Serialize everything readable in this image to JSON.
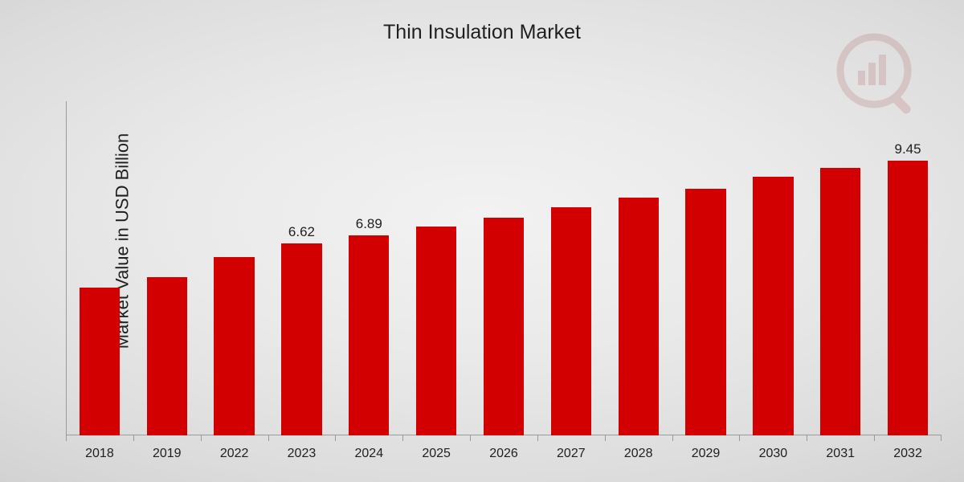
{
  "chart": {
    "type": "bar",
    "title": "Thin Insulation Market",
    "title_fontsize": 25,
    "title_color": "#1f1f1f",
    "ylabel": "Market Value in USD Billion",
    "ylabel_fontsize": 22,
    "ylabel_color": "#1f1f1f",
    "background": "radial-gradient #f2f2f2 to #cfcfcf",
    "axis_line_color": "#9a9a9a",
    "bar_color": "#d20000",
    "bar_width": 0.6,
    "x_tick_fontsize": 16,
    "x_tick_color": "#1f1f1f",
    "value_label_fontsize": 17,
    "value_label_color": "#1f1f1f",
    "ylim": [
      0,
      11.5
    ],
    "categories": [
      "2018",
      "2019",
      "2022",
      "2023",
      "2024",
      "2025",
      "2026",
      "2027",
      "2028",
      "2029",
      "2030",
      "2031",
      "2032"
    ],
    "values": [
      5.1,
      5.45,
      6.15,
      6.62,
      6.89,
      7.18,
      7.5,
      7.85,
      8.18,
      8.5,
      8.9,
      9.2,
      9.45
    ],
    "visible_value_labels": {
      "2023": "6.62",
      "2024": "6.89",
      "2032": "9.45"
    },
    "watermark": {
      "opacity": 0.12,
      "bar_color": "#8a0000",
      "ring_color": "#8a0000",
      "handle_color": "#8a0000"
    }
  }
}
